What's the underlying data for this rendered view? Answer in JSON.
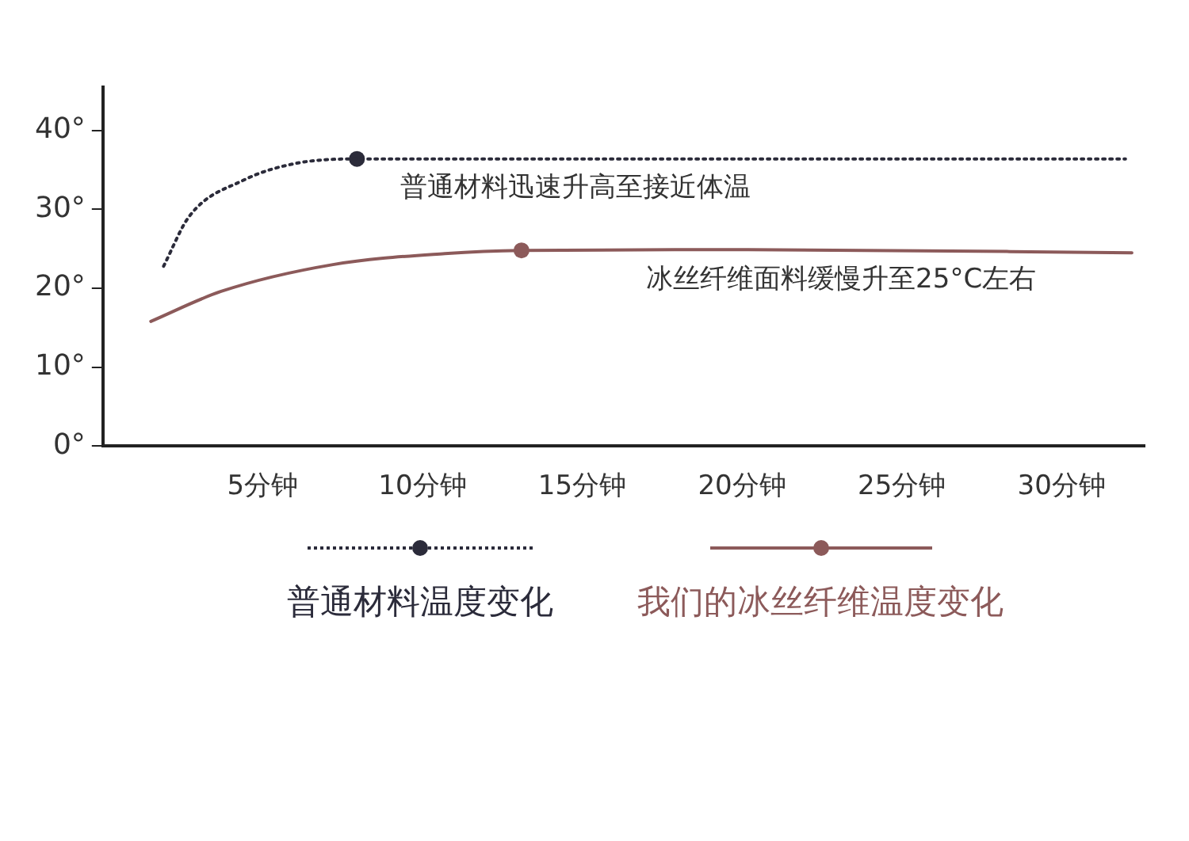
{
  "chart_data": {
    "type": "line",
    "xlim": [
      0,
      32.6
    ],
    "ylim": [
      0,
      45.5
    ],
    "xticks": [
      {
        "value": 5,
        "label": "5分钟"
      },
      {
        "value": 10,
        "label": "10分钟"
      },
      {
        "value": 15,
        "label": "15分钟"
      },
      {
        "value": 20,
        "label": "20分钟"
      },
      {
        "value": 25,
        "label": "25分钟"
      },
      {
        "value": 30,
        "label": "30分钟"
      }
    ],
    "yticks": [
      {
        "value": 0,
        "label": "0°"
      },
      {
        "value": 10,
        "label": "10°"
      },
      {
        "value": 20,
        "label": "20°"
      },
      {
        "value": 30,
        "label": "30°"
      },
      {
        "value": 40,
        "label": "40°"
      }
    ],
    "grid": false,
    "legend": "bottom",
    "marker": "none",
    "series": [
      {
        "name": "普通材料温度变化",
        "color": "#2b2b3a",
        "line_style": "dotted",
        "x": [
          1.9,
          2.7,
          4.4,
          6.0,
          7.95,
          20,
          32.0
        ],
        "values": [
          22.8,
          29.1,
          33.7,
          35.8,
          36.4,
          36.4,
          36.4
        ]
      },
      {
        "name": "我们的冰丝纤维温度变化",
        "color": "#8c5a5a",
        "line_style": "solid",
        "x": [
          1.5,
          3.7,
          7.2,
          10.7,
          13.1,
          20.2,
          32.2
        ],
        "values": [
          15.8,
          19.6,
          23.0,
          24.4,
          24.8,
          24.9,
          24.5
        ]
      },
      {
        "type": "scatter",
        "marker": "circle",
        "color": "#2b2b3a",
        "x": [
          7.95
        ],
        "values": [
          36.4
        ]
      },
      {
        "type": "scatter",
        "marker": "circle",
        "color": "#8c5a5a",
        "x": [
          13.1
        ],
        "values": [
          24.8
        ]
      }
    ],
    "annotations": [
      {
        "text": "普通材料迅速升高至接近体温",
        "x": 9.3,
        "y": 36.4
      },
      {
        "text": "冰丝纤维面料缓慢升至25°C左右",
        "x": 17.0,
        "y": 24.8
      }
    ]
  }
}
